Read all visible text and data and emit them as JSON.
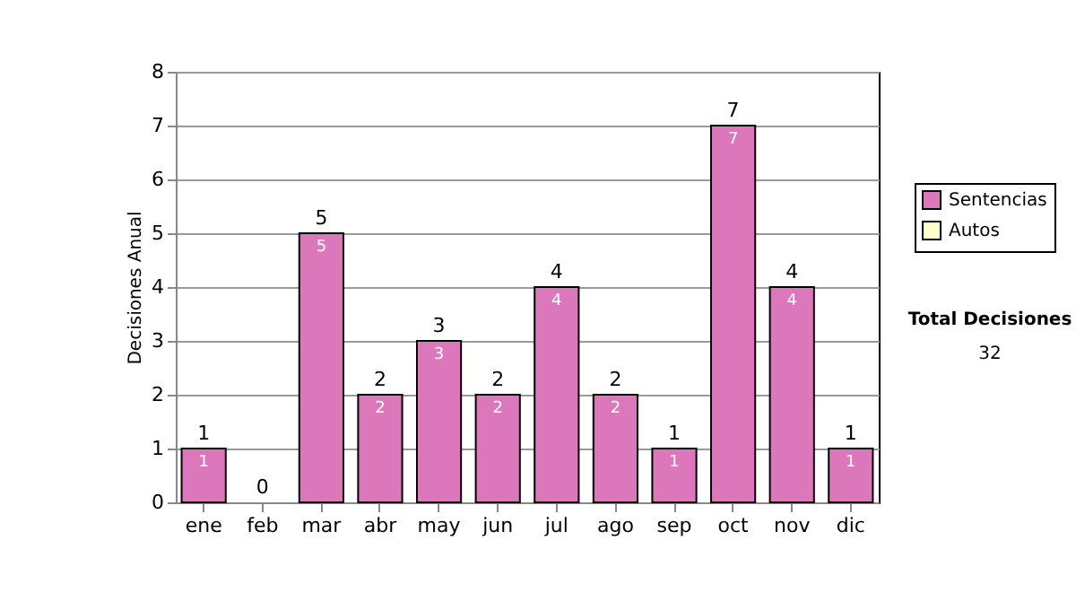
{
  "chart_data": {
    "type": "bar",
    "ylabel": "Decisiones Anual",
    "categories": [
      "ene",
      "feb",
      "mar",
      "abr",
      "may",
      "jun",
      "jul",
      "ago",
      "sep",
      "oct",
      "nov",
      "dic"
    ],
    "series": [
      {
        "name": "Sentencias",
        "color": "#dd77bb",
        "values": [
          1,
          0,
          5,
          2,
          3,
          2,
          4,
          2,
          1,
          7,
          4,
          1
        ],
        "value_labels": [
          "1",
          null,
          "5",
          "2",
          "3",
          "2",
          "4",
          "2",
          "1",
          "7",
          "4",
          "1"
        ]
      },
      {
        "name": "Autos",
        "color": "#ffffcc",
        "values": [
          null,
          null,
          null,
          null,
          null,
          null,
          null,
          null,
          null,
          null,
          null,
          null
        ]
      }
    ],
    "stacked": true,
    "totals": [
      "1",
      "0",
      "5",
      "2",
      "3",
      "2",
      "4",
      "2",
      "1",
      "7",
      "4",
      "1"
    ],
    "ylim": [
      0,
      8
    ],
    "yticks": [
      0,
      1,
      2,
      3,
      4,
      5,
      6,
      7,
      8
    ],
    "grid": "y",
    "legend": "right",
    "annotations": [
      "Total Decisiones",
      "32"
    ]
  }
}
